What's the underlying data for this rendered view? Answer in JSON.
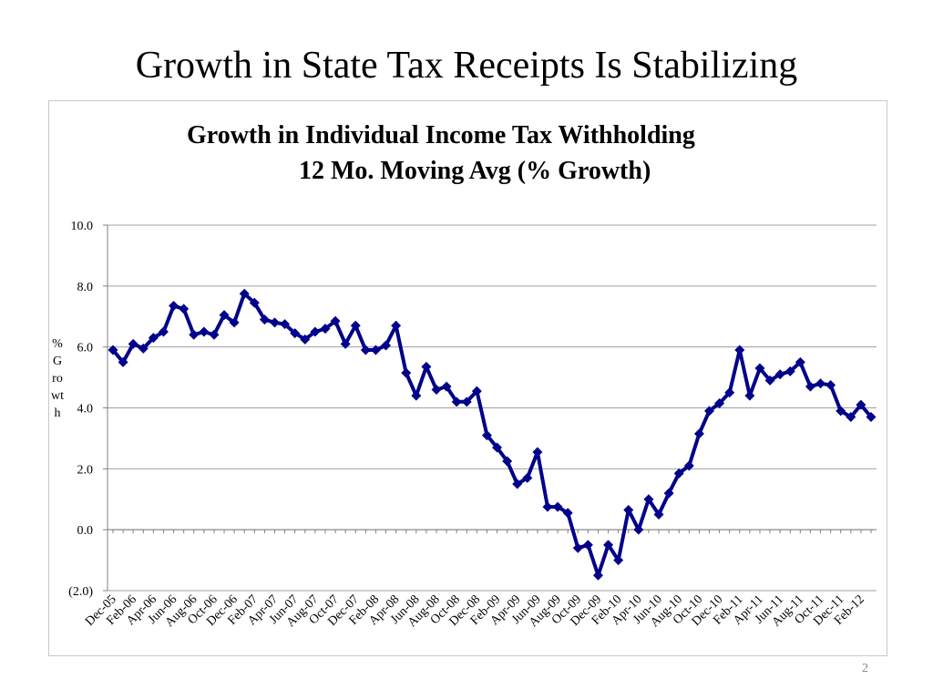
{
  "slide": {
    "title": "Growth in State Tax Receipts Is Stabilizing",
    "page_number": "2"
  },
  "chart_data": {
    "type": "line",
    "title": "Growth in Individual Income Tax Withholding",
    "subtitle": "12 Mo. Moving Avg (% Growth)",
    "ylabel": "% Growth",
    "xlabel": "",
    "ylim": [
      -2,
      10
    ],
    "y_ticks": [
      -2,
      0,
      2,
      4,
      6,
      8,
      10
    ],
    "y_tick_labels": [
      "(2.0)",
      "0.0",
      "2.0",
      "4.0",
      "6.0",
      "8.0",
      "10.0"
    ],
    "grid": true,
    "legend": "none",
    "line_color": "#00008b",
    "x_tick_labels": [
      "Dec-05",
      "Feb-06",
      "Apr-06",
      "Jun-06",
      "Aug-06",
      "Oct-06",
      "Dec-06",
      "Feb-07",
      "Apr-07",
      "Jun-07",
      "Aug-07",
      "Oct-07",
      "Dec-07",
      "Feb-08",
      "Apr-08",
      "Jun-08",
      "Aug-08",
      "Oct-08",
      "Dec-08",
      "Feb-09",
      "Apr-09",
      "Jun-09",
      "Aug-09",
      "Oct-09",
      "Dec-09",
      "Feb-10",
      "Apr-10",
      "Jun-10",
      "Aug-10",
      "Oct-10",
      "Dec-10",
      "Feb-11",
      "Apr-11",
      "Jun-11",
      "Aug-11",
      "Oct-11",
      "Dec-11",
      "Feb-12"
    ],
    "x": [
      "Dec-05",
      "Jan-06",
      "Feb-06",
      "Mar-06",
      "Apr-06",
      "May-06",
      "Jun-06",
      "Jul-06",
      "Aug-06",
      "Sep-06",
      "Oct-06",
      "Nov-06",
      "Dec-06",
      "Jan-07",
      "Feb-07",
      "Mar-07",
      "Apr-07",
      "May-07",
      "Jun-07",
      "Jul-07",
      "Aug-07",
      "Sep-07",
      "Oct-07",
      "Nov-07",
      "Dec-07",
      "Jan-08",
      "Feb-08",
      "Mar-08",
      "Apr-08",
      "May-08",
      "Jun-08",
      "Jul-08",
      "Aug-08",
      "Sep-08",
      "Oct-08",
      "Nov-08",
      "Dec-08",
      "Jan-09",
      "Feb-09",
      "Mar-09",
      "Apr-09",
      "May-09",
      "Jun-09",
      "Jul-09",
      "Aug-09",
      "Sep-09",
      "Oct-09",
      "Nov-09",
      "Dec-09",
      "Jan-10",
      "Feb-10",
      "Mar-10",
      "Apr-10",
      "May-10",
      "Jun-10",
      "Jul-10",
      "Aug-10",
      "Sep-10",
      "Oct-10",
      "Nov-10",
      "Dec-10",
      "Jan-11",
      "Feb-11",
      "Mar-11",
      "Apr-11",
      "May-11",
      "Jun-11",
      "Jul-11",
      "Aug-11",
      "Sep-11",
      "Oct-11",
      "Nov-11",
      "Dec-11",
      "Jan-12",
      "Feb-12",
      "Mar-12"
    ],
    "series": [
      {
        "values": [
          5.9,
          5.5,
          6.1,
          5.95,
          6.3,
          6.5,
          7.35,
          7.25,
          6.4,
          6.5,
          6.4,
          7.05,
          6.8,
          7.75,
          7.45,
          6.9,
          6.8,
          6.75,
          6.45,
          6.25,
          6.5,
          6.6,
          6.85,
          6.1,
          6.7,
          5.9,
          5.9,
          6.05,
          6.7,
          5.15,
          4.4,
          5.35,
          4.6,
          4.7,
          4.2,
          4.2,
          4.55,
          3.1,
          2.7,
          2.25,
          1.5,
          1.7,
          2.55,
          0.75,
          0.75,
          0.55,
          -0.6,
          -0.5,
          -1.5,
          -0.5,
          -1.0,
          0.65,
          0.0,
          1.0,
          0.5,
          1.2,
          1.85,
          2.1,
          3.15,
          3.9,
          4.15,
          4.5,
          5.9,
          4.4,
          5.3,
          4.9,
          5.1,
          5.2,
          5.5,
          4.7,
          4.8,
          4.75,
          3.9,
          3.7,
          4.1,
          3.7
        ]
      }
    ]
  }
}
